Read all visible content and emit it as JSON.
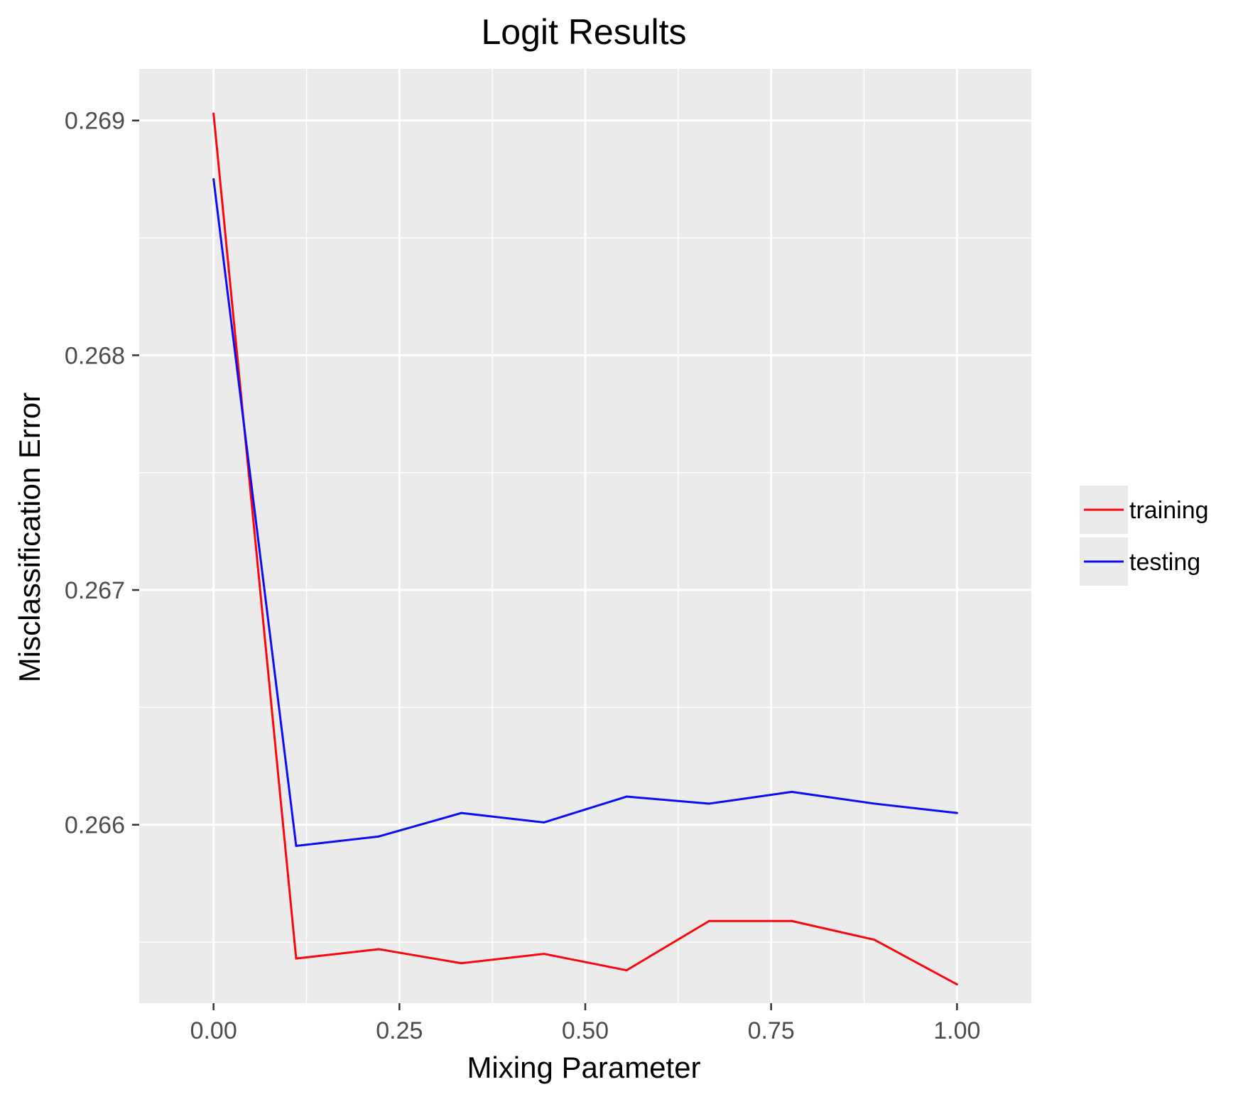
{
  "chart_data": {
    "type": "line",
    "title": "Logit Results",
    "xlabel": "Mixing Parameter",
    "ylabel": "Misclassification Error",
    "xlim": [
      -0.1,
      1.1
    ],
    "ylim": [
      0.26524,
      0.26922
    ],
    "x_ticks": [
      0.0,
      0.25,
      0.5,
      0.75,
      1.0
    ],
    "x_tick_labels": [
      "0.00",
      "0.25",
      "0.50",
      "0.75",
      "1.00"
    ],
    "y_ticks": [
      0.266,
      0.267,
      0.268,
      0.269
    ],
    "y_tick_labels": [
      "0.266",
      "0.267",
      "0.268",
      "0.269"
    ],
    "grid": true,
    "legend_position": "right",
    "x": [
      0.0,
      0.1111,
      0.2222,
      0.3333,
      0.4444,
      0.5556,
      0.6667,
      0.7778,
      0.8889,
      1.0
    ],
    "series": [
      {
        "name": "training",
        "color": "#f8070d",
        "values": [
          0.26903,
          0.26543,
          0.26547,
          0.26541,
          0.26545,
          0.26538,
          0.26559,
          0.26559,
          0.26551,
          0.26532
        ]
      },
      {
        "name": "testing",
        "color": "#0d0cf2",
        "values": [
          0.26875,
          0.26591,
          0.26595,
          0.26605,
          0.26601,
          0.26612,
          0.26609,
          0.26614,
          0.26609,
          0.26605
        ]
      }
    ]
  }
}
